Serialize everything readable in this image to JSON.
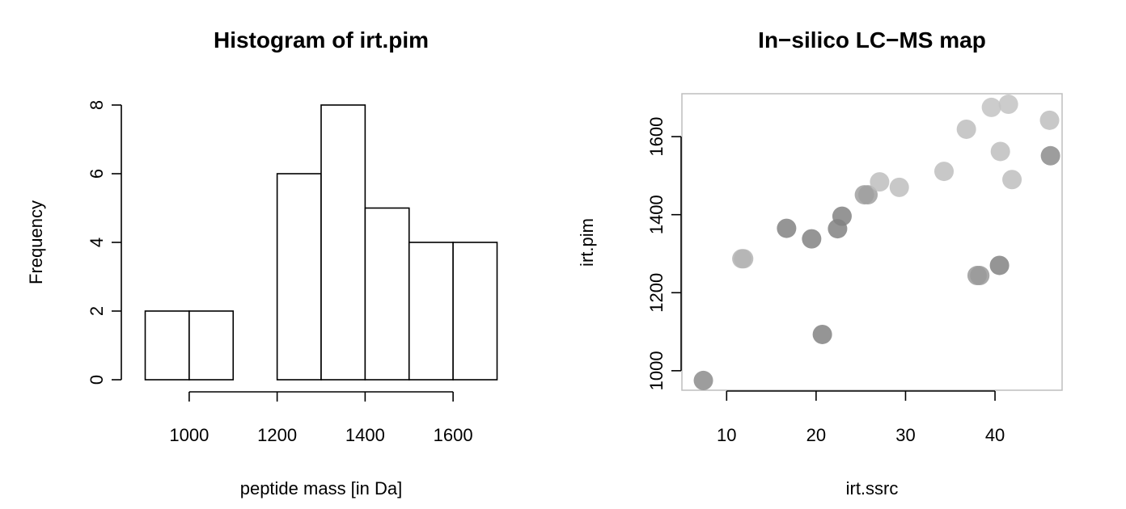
{
  "chart_data": [
    {
      "type": "bar",
      "title": "Histogram of irt.pim",
      "xlabel": "peptide mass [in Da]",
      "ylabel": "Frequency",
      "bins": [
        {
          "from": 900,
          "to": 1000,
          "count": 2
        },
        {
          "from": 1000,
          "to": 1100,
          "count": 2
        },
        {
          "from": 1100,
          "to": 1200,
          "count": 0
        },
        {
          "from": 1200,
          "to": 1300,
          "count": 6
        },
        {
          "from": 1300,
          "to": 1400,
          "count": 8
        },
        {
          "from": 1400,
          "to": 1500,
          "count": 5
        },
        {
          "from": 1500,
          "to": 1600,
          "count": 4
        },
        {
          "from": 1600,
          "to": 1700,
          "count": 4
        }
      ],
      "xticks": [
        1000,
        1200,
        1400,
        1600
      ],
      "yticks": [
        0,
        2,
        4,
        6,
        8
      ],
      "xlim": [
        900,
        1700
      ],
      "ylim": [
        0,
        8
      ],
      "bar_fill": "#ffffff",
      "bar_stroke": "#000000"
    },
    {
      "type": "scatter",
      "title": "In−silico LC−MS map",
      "xlabel": "irt.ssrc",
      "ylabel": "irt.pim",
      "xticks": [
        10,
        20,
        30,
        40
      ],
      "yticks": [
        1000,
        1200,
        1400,
        1600
      ],
      "xlim": [
        5,
        47.5
      ],
      "ylim": [
        950,
        1710
      ],
      "box": true,
      "box_color": "#bebebe",
      "points": [
        {
          "x": 7.4,
          "y": 975,
          "color": "#8c8c8c"
        },
        {
          "x": 11.7,
          "y": 1287,
          "color": "#b4b4b4"
        },
        {
          "x": 11.9,
          "y": 1287,
          "color": "#b4b4b4"
        },
        {
          "x": 16.7,
          "y": 1365,
          "color": "#828282"
        },
        {
          "x": 19.5,
          "y": 1338,
          "color": "#828282"
        },
        {
          "x": 20.7,
          "y": 1093,
          "color": "#828282"
        },
        {
          "x": 22.4,
          "y": 1364,
          "color": "#828282"
        },
        {
          "x": 22.9,
          "y": 1396,
          "color": "#828282"
        },
        {
          "x": 25.4,
          "y": 1451,
          "color": "#a0a0a0"
        },
        {
          "x": 25.8,
          "y": 1451,
          "color": "#a0a0a0"
        },
        {
          "x": 27.1,
          "y": 1484,
          "color": "#bebebe"
        },
        {
          "x": 29.3,
          "y": 1470,
          "color": "#bebebe"
        },
        {
          "x": 34.3,
          "y": 1511,
          "color": "#bebebe"
        },
        {
          "x": 36.8,
          "y": 1619,
          "color": "#bebebe"
        },
        {
          "x": 38.0,
          "y": 1244,
          "color": "#9a9a9a"
        },
        {
          "x": 38.3,
          "y": 1244,
          "color": "#9a9a9a"
        },
        {
          "x": 39.6,
          "y": 1675,
          "color": "#c3c3c3"
        },
        {
          "x": 40.5,
          "y": 1270,
          "color": "#828282"
        },
        {
          "x": 40.6,
          "y": 1562,
          "color": "#bebebe"
        },
        {
          "x": 41.5,
          "y": 1683,
          "color": "#c3c3c3"
        },
        {
          "x": 41.9,
          "y": 1490,
          "color": "#bebebe"
        },
        {
          "x": 46.1,
          "y": 1642,
          "color": "#bebebe"
        },
        {
          "x": 46.2,
          "y": 1551,
          "color": "#8c8c8c"
        }
      ]
    }
  ]
}
